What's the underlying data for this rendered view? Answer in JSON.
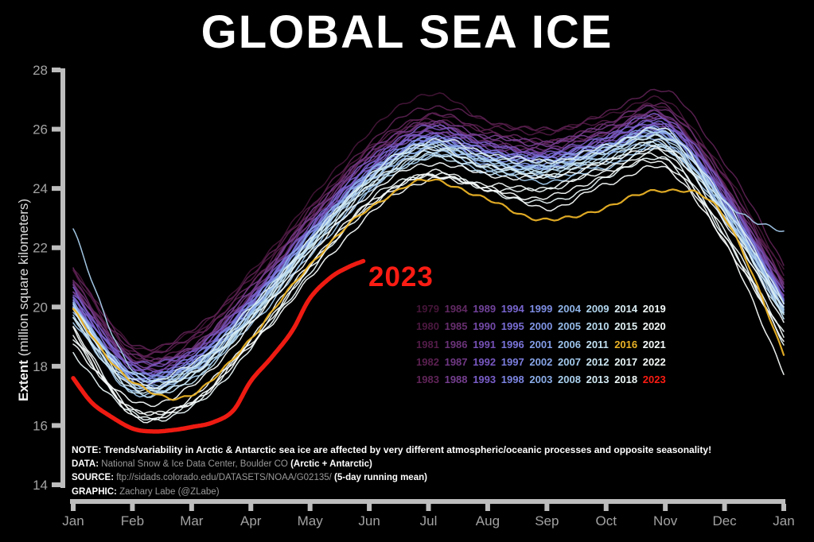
{
  "title": "GLOBAL SEA ICE",
  "annotation_2023": "2023",
  "axes": {
    "y_label_bold": "Extent",
    "y_label_rest": " (million square kilometers)",
    "y_ticks": [
      28,
      26,
      24,
      22,
      20,
      18,
      16,
      14
    ],
    "x_ticks": [
      "Jan",
      "Feb",
      "Mar",
      "Apr",
      "May",
      "Jun",
      "Jul",
      "Aug",
      "Sep",
      "Oct",
      "Nov",
      "Dec",
      "Jan"
    ]
  },
  "colors": {
    "background": "#000000",
    "title": "#ffffff",
    "axis": "#bdbdbd",
    "tick_label": "#a2a2a2",
    "note_gray": "#999999",
    "highlight_2016": "#eab226",
    "highlight_2023": "#fb1c13"
  },
  "legend": {
    "rows": 5,
    "cols": 9,
    "order": "column-major"
  },
  "notes": {
    "lines": [
      {
        "segments": [
          {
            "t": "NOTE: Trends/variability in Arctic & Antarctic sea ice are affected by very different atmospheric/oceanic processes and opposite seasonality!",
            "b": true
          }
        ]
      },
      {
        "segments": [
          {
            "t": "DATA: ",
            "b": true
          },
          {
            "t": "National Snow & Ice Data Center, Boulder CO ",
            "b": false
          },
          {
            "t": "(Arctic + Antarctic)",
            "b": true
          }
        ]
      },
      {
        "segments": [
          {
            "t": "SOURCE: ",
            "b": true
          },
          {
            "t": "ftp://sidads.colorado.edu/DATASETS/NOAA/G02135/ ",
            "b": false
          },
          {
            "t": "(5-day running mean)",
            "b": true
          }
        ]
      },
      {
        "segments": [
          {
            "t": "GRAPHIC: ",
            "b": true
          },
          {
            "t": "Zachary Labe (@ZLabe)",
            "b": false
          }
        ]
      }
    ]
  },
  "chart_data": {
    "type": "line",
    "title": "GLOBAL SEA ICE",
    "ylabel": "Extent (million square kilometers)",
    "ylim": [
      14,
      28
    ],
    "grid": false,
    "legend_position": "lower-right-inside",
    "x": [
      "Jan",
      "Feb",
      "Mar",
      "Apr",
      "May",
      "Jun",
      "Jul",
      "Aug",
      "Sep",
      "Oct",
      "Nov",
      "Dec",
      "Jan"
    ],
    "series": [
      {
        "name": "1979",
        "color": "#451538",
        "values": [
          21.3,
          18.8,
          19.2,
          21.1,
          23.5,
          25.9,
          27.3,
          26.3,
          25.9,
          26.4,
          27.0,
          24.6,
          21.2
        ]
      },
      {
        "name": "1980",
        "color": "#4c1840",
        "values": [
          21.2,
          18.6,
          19.0,
          20.9,
          23.3,
          25.4,
          26.5,
          26.0,
          25.8,
          26.3,
          26.8,
          24.4,
          21.0
        ]
      },
      {
        "name": "1981",
        "color": "#531c48",
        "values": [
          21.0,
          18.4,
          18.8,
          20.7,
          23.1,
          25.2,
          26.3,
          25.8,
          25.5,
          26.0,
          26.5,
          24.1,
          20.8
        ]
      },
      {
        "name": "1982",
        "color": "#5a2050",
        "values": [
          20.8,
          18.7,
          19.1,
          21.0,
          23.4,
          25.6,
          26.7,
          26.2,
          26.0,
          26.6,
          27.3,
          24.8,
          21.4
        ]
      },
      {
        "name": "1983",
        "color": "#602458",
        "values": [
          21.4,
          18.5,
          18.9,
          20.8,
          23.2,
          25.3,
          26.4,
          25.9,
          25.7,
          26.2,
          26.7,
          24.3,
          20.9
        ]
      },
      {
        "name": "1984",
        "color": "#612963",
        "values": [
          20.9,
          18.2,
          18.6,
          20.5,
          22.9,
          25.0,
          26.1,
          25.6,
          25.4,
          25.9,
          26.4,
          24.0,
          20.6
        ]
      },
      {
        "name": "1985",
        "color": "#662e6e",
        "values": [
          20.6,
          18.3,
          18.7,
          20.6,
          23.0,
          25.1,
          26.2,
          25.7,
          25.5,
          26.1,
          26.6,
          24.2,
          20.8
        ]
      },
      {
        "name": "1986",
        "color": "#6b3379",
        "values": [
          20.8,
          18.1,
          18.5,
          20.4,
          22.8,
          24.9,
          26.0,
          25.5,
          25.3,
          25.8,
          26.3,
          23.9,
          20.5
        ]
      },
      {
        "name": "1987",
        "color": "#703884",
        "values": [
          20.5,
          18.3,
          18.7,
          20.6,
          23.0,
          25.2,
          26.3,
          25.8,
          25.5,
          26.0,
          26.5,
          24.1,
          20.7
        ]
      },
      {
        "name": "1988",
        "color": "#753e8f",
        "values": [
          20.7,
          18.2,
          18.6,
          20.5,
          22.9,
          25.0,
          26.1,
          25.7,
          25.4,
          25.9,
          26.4,
          24.0,
          20.6
        ]
      },
      {
        "name": "1989",
        "color": "#71429b",
        "values": [
          20.6,
          18.0,
          18.4,
          20.3,
          22.7,
          24.8,
          25.9,
          25.4,
          25.2,
          25.7,
          26.2,
          23.8,
          20.4
        ]
      },
      {
        "name": "1990",
        "color": "#7349a8",
        "values": [
          20.4,
          17.9,
          18.3,
          20.2,
          22.6,
          24.7,
          25.8,
          25.3,
          25.1,
          25.6,
          26.1,
          23.7,
          20.3
        ]
      },
      {
        "name": "1991",
        "color": "#7550b4",
        "values": [
          20.3,
          18.0,
          18.4,
          20.3,
          22.7,
          24.8,
          25.9,
          25.5,
          25.2,
          25.7,
          26.2,
          23.8,
          20.4
        ]
      },
      {
        "name": "1992",
        "color": "#7757c0",
        "values": [
          20.4,
          18.1,
          18.5,
          20.4,
          22.8,
          24.9,
          26.0,
          25.5,
          25.3,
          25.8,
          26.3,
          23.9,
          20.5
        ]
      },
      {
        "name": "1993",
        "color": "#795ec9",
        "values": [
          20.5,
          17.9,
          18.3,
          20.2,
          22.6,
          24.7,
          25.8,
          25.3,
          25.1,
          25.6,
          26.1,
          23.7,
          20.3
        ]
      },
      {
        "name": "1994",
        "color": "#7865cf",
        "values": [
          20.3,
          17.9,
          18.3,
          20.2,
          22.6,
          24.7,
          25.8,
          25.3,
          25.1,
          25.6,
          26.1,
          23.7,
          20.3
        ]
      },
      {
        "name": "1995",
        "color": "#796dd5",
        "values": [
          20.3,
          17.7,
          18.1,
          20.0,
          22.4,
          24.5,
          25.6,
          25.1,
          24.9,
          25.4,
          25.9,
          23.5,
          20.1
        ]
      },
      {
        "name": "1996",
        "color": "#7a75da",
        "values": [
          20.1,
          17.8,
          18.2,
          20.1,
          22.5,
          24.6,
          25.7,
          25.2,
          25.0,
          25.5,
          26.0,
          23.6,
          20.2
        ]
      },
      {
        "name": "1997",
        "color": "#7b7dde",
        "values": [
          20.2,
          17.7,
          18.1,
          20.0,
          22.4,
          24.5,
          25.6,
          25.1,
          24.9,
          25.4,
          25.9,
          23.5,
          20.1
        ]
      },
      {
        "name": "1998",
        "color": "#7c85e1",
        "values": [
          20.1,
          17.8,
          18.2,
          20.1,
          22.5,
          24.6,
          25.7,
          25.2,
          25.0,
          25.5,
          26.0,
          23.6,
          20.2
        ]
      },
      {
        "name": "1999",
        "color": "#7d8de3",
        "values": [
          20.2,
          17.6,
          18.0,
          19.9,
          22.3,
          24.4,
          25.5,
          25.0,
          24.8,
          25.3,
          25.8,
          23.4,
          20.0
        ]
      },
      {
        "name": "2000",
        "color": "#8095e5",
        "values": [
          20.0,
          17.7,
          18.1,
          20.0,
          22.4,
          24.5,
          25.6,
          25.1,
          24.9,
          25.4,
          25.9,
          23.5,
          20.1
        ]
      },
      {
        "name": "2001",
        "color": "#839de6",
        "values": [
          20.1,
          17.6,
          18.0,
          19.9,
          22.3,
          24.4,
          25.5,
          25.0,
          24.8,
          25.3,
          25.8,
          23.4,
          20.0
        ]
      },
      {
        "name": "2002",
        "color": "#87a5e7",
        "values": [
          20.0,
          17.5,
          17.9,
          19.8,
          22.2,
          24.3,
          25.4,
          24.9,
          24.7,
          25.2,
          25.7,
          23.3,
          19.9
        ]
      },
      {
        "name": "2003",
        "color": "#8bade8",
        "values": [
          19.9,
          17.7,
          18.1,
          20.0,
          22.4,
          24.5,
          25.6,
          25.1,
          24.9,
          25.4,
          25.9,
          23.5,
          20.1
        ]
      },
      {
        "name": "2004",
        "color": "#90b5e9",
        "values": [
          20.1,
          17.5,
          17.9,
          19.8,
          22.2,
          24.3,
          25.4,
          24.9,
          24.7,
          25.2,
          25.7,
          23.3,
          19.9
        ]
      },
      {
        "name": "2005",
        "color": "#96bcea",
        "values": [
          19.9,
          17.4,
          17.8,
          19.7,
          22.1,
          24.2,
          25.3,
          24.8,
          24.6,
          25.1,
          25.6,
          23.2,
          19.8
        ]
      },
      {
        "name": "2006",
        "color": "#9cc3eb",
        "values": [
          19.8,
          17.2,
          17.6,
          19.5,
          21.9,
          24.0,
          25.1,
          24.6,
          24.4,
          24.9,
          25.4,
          23.0,
          19.6
        ]
      },
      {
        "name": "2007",
        "color": "#a3caec",
        "values": [
          19.6,
          17.1,
          17.5,
          19.4,
          21.8,
          23.9,
          25.0,
          24.5,
          24.3,
          24.8,
          25.3,
          23.4,
          22.5
        ]
      },
      {
        "name": "2008",
        "color": "#aad0ed",
        "values": [
          22.6,
          17.8,
          17.9,
          19.8,
          22.2,
          24.3,
          25.4,
          24.9,
          24.7,
          25.2,
          25.7,
          23.3,
          19.9
        ]
      },
      {
        "name": "2009",
        "color": "#b2d6ee",
        "values": [
          20.0,
          17.6,
          17.9,
          19.7,
          22.1,
          24.2,
          25.4,
          25.0,
          24.8,
          25.3,
          25.8,
          23.4,
          20.0
        ]
      },
      {
        "name": "2010",
        "color": "#badbef",
        "values": [
          20.0,
          17.4,
          17.8,
          19.7,
          22.1,
          24.2,
          25.3,
          24.8,
          24.6,
          25.1,
          25.6,
          23.2,
          19.8
        ]
      },
      {
        "name": "2011",
        "color": "#c2e0f0",
        "values": [
          19.8,
          17.2,
          17.6,
          19.5,
          21.9,
          24.0,
          25.1,
          24.6,
          24.4,
          24.9,
          25.4,
          23.0,
          19.6
        ]
      },
      {
        "name": "2012",
        "color": "#cae5f1",
        "values": [
          19.6,
          17.3,
          17.7,
          19.6,
          22.0,
          24.1,
          25.2,
          24.7,
          24.5,
          25.0,
          25.5,
          23.1,
          19.7
        ]
      },
      {
        "name": "2013",
        "color": "#d2e9f2",
        "values": [
          19.7,
          17.5,
          17.9,
          19.8,
          22.2,
          24.4,
          25.5,
          25.0,
          24.8,
          25.3,
          25.8,
          23.4,
          20.0
        ]
      },
      {
        "name": "2014",
        "color": "#daedf3",
        "values": [
          20.0,
          17.6,
          18.0,
          19.9,
          22.3,
          24.5,
          25.6,
          25.1,
          24.9,
          25.5,
          26.0,
          23.5,
          20.1
        ]
      },
      {
        "name": "2015",
        "color": "#e1f1f4",
        "values": [
          20.1,
          17.3,
          17.7,
          19.6,
          22.0,
          24.1,
          25.2,
          24.7,
          24.5,
          25.0,
          25.5,
          23.0,
          19.9
        ]
      },
      {
        "name": "2016",
        "color": "#eab226",
        "values": [
          19.9,
          17.4,
          17.0,
          19.0,
          21.5,
          23.3,
          24.2,
          23.6,
          23.0,
          23.4,
          23.9,
          23.0,
          18.4
        ]
      },
      {
        "name": "2017",
        "color": "#e8f4f5",
        "values": [
          18.4,
          16.3,
          16.6,
          18.7,
          21.2,
          23.3,
          24.4,
          24.0,
          23.6,
          24.3,
          24.9,
          22.4,
          18.9
        ]
      },
      {
        "name": "2018",
        "color": "#edf6f6",
        "values": [
          18.9,
          16.4,
          16.8,
          18.9,
          21.3,
          23.5,
          24.5,
          24.1,
          24.0,
          24.6,
          25.1,
          22.6,
          19.2
        ]
      },
      {
        "name": "2019",
        "color": "#f1f8f7",
        "values": [
          19.2,
          16.6,
          16.9,
          18.8,
          21.2,
          23.4,
          24.6,
          24.2,
          24.0,
          24.5,
          25.0,
          22.5,
          19.0
        ]
      },
      {
        "name": "2020",
        "color": "#f4f9f8",
        "values": [
          19.0,
          16.6,
          17.0,
          18.9,
          21.4,
          23.5,
          24.5,
          24.0,
          23.6,
          24.4,
          24.9,
          22.3,
          18.8
        ]
      },
      {
        "name": "2021",
        "color": "#f6fafa",
        "values": [
          18.8,
          16.9,
          17.3,
          19.3,
          21.7,
          23.9,
          24.9,
          24.4,
          24.3,
          24.9,
          25.4,
          22.9,
          19.4
        ]
      },
      {
        "name": "2022",
        "color": "#f8fbfb",
        "values": [
          19.4,
          16.4,
          16.7,
          18.6,
          21.0,
          23.2,
          24.3,
          23.9,
          23.3,
          24.2,
          24.7,
          22.1,
          17.7
        ]
      },
      {
        "name": "2023",
        "color": "#fb1c13",
        "points": [
          [
            0,
            17.6
          ],
          [
            0.3,
            16.8
          ],
          [
            0.6,
            16.35
          ],
          [
            1,
            15.9
          ],
          [
            1.35,
            15.8
          ],
          [
            1.7,
            15.85
          ],
          [
            2,
            15.95
          ],
          [
            2.35,
            16.1
          ],
          [
            2.7,
            16.5
          ],
          [
            3,
            17.5
          ],
          [
            3.35,
            18.3
          ],
          [
            3.7,
            19.2
          ],
          [
            4,
            20.3
          ],
          [
            4.35,
            21.0
          ],
          [
            4.65,
            21.35
          ],
          [
            4.9,
            21.55
          ]
        ]
      }
    ]
  }
}
